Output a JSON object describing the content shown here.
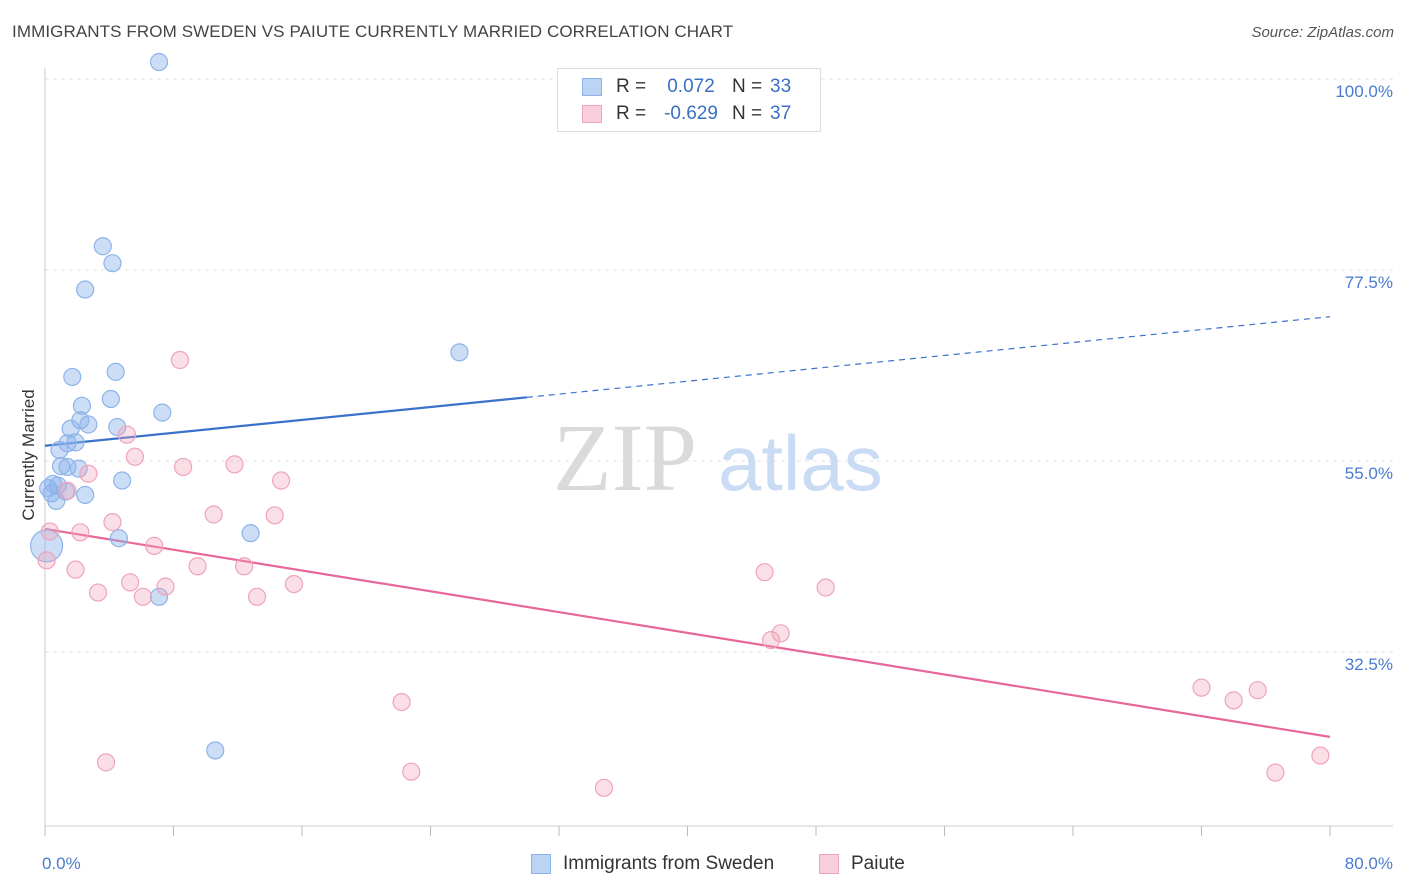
{
  "title": "IMMIGRANTS FROM SWEDEN VS PAIUTE CURRENTLY MARRIED CORRELATION CHART",
  "source": "Source: ZipAtlas.com",
  "watermark": {
    "zip": "ZIP",
    "atlas": "atlas"
  },
  "colors": {
    "blue": "#8db4ea",
    "blue_fill": "rgba(141,180,234,0.45)",
    "blue_line": "#3a72c9",
    "pink": "#f0a3bb",
    "pink_fill": "rgba(240,163,187,0.35)",
    "pink_line": "#e8679a",
    "grid": "#e3e3e3",
    "tick_text": "#4a7bd0"
  },
  "legend": {
    "rows": [
      {
        "r_label": "R =",
        "r_value": "0.072",
        "n_label": "N =",
        "n_value": "33"
      },
      {
        "r_label": "R =",
        "r_value": "-0.629",
        "n_label": "N =",
        "n_value": "37"
      }
    ]
  },
  "bottom_legend": [
    "Immigrants from Sweden",
    "Paiute"
  ],
  "chart_data": {
    "type": "scatter",
    "title": "IMMIGRANTS FROM SWEDEN VS PAIUTE CURRENTLY MARRIED CORRELATION CHART",
    "xlabel": "",
    "ylabel": "Currently Married",
    "xlim": [
      0,
      80
    ],
    "ylim": [
      10,
      100
    ],
    "x_ticks": [
      "0.0%",
      "80.0%"
    ],
    "y_ticks": [
      {
        "value": 32.5,
        "label": "32.5%"
      },
      {
        "value": 55.0,
        "label": "55.0%"
      },
      {
        "value": 77.5,
        "label": "77.5%"
      },
      {
        "value": 100.0,
        "label": "100.0%"
      }
    ],
    "grid": true,
    "legend_position": "top-center",
    "series": [
      {
        "name": "Immigrants from Sweden",
        "color": "blue",
        "points": [
          [
            7.1,
            102.0
          ],
          [
            3.6,
            80.3
          ],
          [
            4.2,
            78.3
          ],
          [
            2.5,
            75.2
          ],
          [
            25.8,
            67.8
          ],
          [
            1.7,
            64.9
          ],
          [
            4.4,
            65.5
          ],
          [
            2.3,
            61.5
          ],
          [
            7.3,
            60.7
          ],
          [
            4.1,
            62.3
          ],
          [
            2.2,
            59.8
          ],
          [
            2.7,
            59.3
          ],
          [
            4.5,
            59.0
          ],
          [
            1.6,
            58.8
          ],
          [
            1.4,
            57.1
          ],
          [
            1.9,
            57.2
          ],
          [
            0.9,
            56.3
          ],
          [
            1.0,
            54.4
          ],
          [
            1.4,
            54.3
          ],
          [
            2.1,
            54.1
          ],
          [
            4.8,
            52.7
          ],
          [
            0.5,
            52.3
          ],
          [
            0.8,
            52.1
          ],
          [
            0.2,
            51.8
          ],
          [
            0.4,
            51.2
          ],
          [
            1.3,
            51.4
          ],
          [
            2.5,
            51.0
          ],
          [
            0.7,
            50.3
          ],
          [
            12.8,
            46.5
          ],
          [
            4.6,
            45.9
          ],
          [
            0.1,
            45.0
          ],
          [
            7.1,
            39.0
          ],
          [
            10.6,
            20.9
          ]
        ]
      },
      {
        "name": "Paiute",
        "color": "pink",
        "points": [
          [
            8.4,
            66.9
          ],
          [
            5.1,
            58.1
          ],
          [
            5.6,
            55.5
          ],
          [
            8.6,
            54.3
          ],
          [
            11.8,
            54.6
          ],
          [
            2.7,
            53.5
          ],
          [
            14.7,
            52.7
          ],
          [
            1.4,
            51.5
          ],
          [
            10.5,
            48.7
          ],
          [
            14.3,
            48.6
          ],
          [
            4.2,
            47.8
          ],
          [
            0.3,
            46.7
          ],
          [
            2.2,
            46.6
          ],
          [
            6.8,
            45.0
          ],
          [
            0.1,
            43.3
          ],
          [
            9.5,
            42.6
          ],
          [
            12.4,
            42.6
          ],
          [
            1.9,
            42.2
          ],
          [
            44.8,
            41.9
          ],
          [
            5.3,
            40.7
          ],
          [
            7.5,
            40.2
          ],
          [
            15.5,
            40.5
          ],
          [
            48.6,
            40.1
          ],
          [
            3.3,
            39.5
          ],
          [
            6.1,
            39.0
          ],
          [
            13.2,
            39.0
          ],
          [
            45.8,
            34.7
          ],
          [
            45.2,
            33.9
          ],
          [
            72.0,
            28.3
          ],
          [
            75.5,
            28.0
          ],
          [
            74.0,
            26.8
          ],
          [
            22.2,
            26.6
          ],
          [
            3.8,
            19.5
          ],
          [
            22.8,
            18.4
          ],
          [
            34.8,
            16.5
          ],
          [
            79.4,
            20.3
          ],
          [
            76.6,
            18.3
          ]
        ]
      }
    ],
    "trend_lines": [
      {
        "series": "Immigrants from Sweden",
        "solid": [
          [
            0,
            56.8
          ],
          [
            30,
            62.5
          ]
        ],
        "dashed": [
          [
            30,
            62.5
          ],
          [
            80,
            72.0
          ]
        ]
      },
      {
        "series": "Paiute",
        "solid": [
          [
            0,
            47.0
          ],
          [
            80,
            22.5
          ]
        ]
      }
    ]
  }
}
